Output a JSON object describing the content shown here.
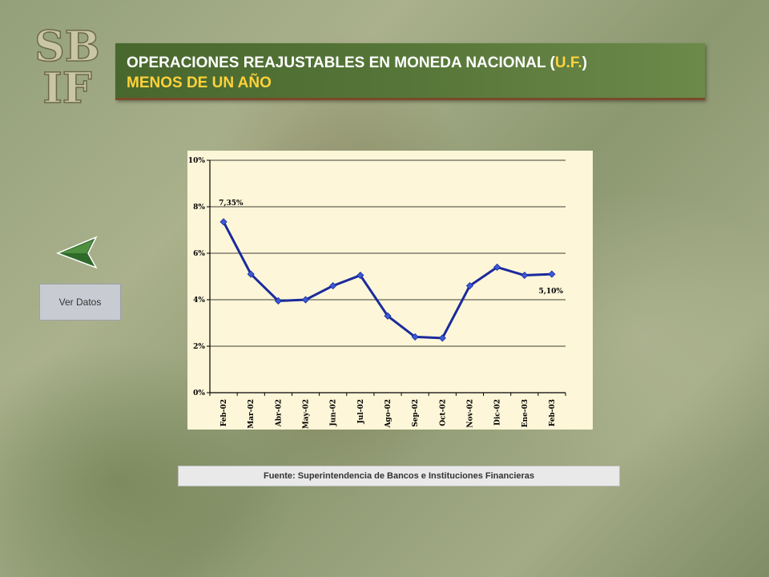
{
  "logo": {
    "line1": "SB",
    "line2": "IF"
  },
  "header": {
    "title_prefix": "OPERACIONES REAJUSTABLES EN MONEDA NACIONAL (",
    "title_highlight": "U.F.",
    "title_suffix": ")",
    "subtitle": "MENOS DE UN AÑO"
  },
  "nav": {
    "back_icon": "back-arrow-icon",
    "ver_datos_label": "Ver Datos"
  },
  "source": {
    "text": "Fuente:  Superintendencia  de Bancos  e Instituciones Financieras"
  },
  "colors": {
    "header_bg": "#58783a",
    "accent_yellow": "#ffd23a",
    "line": "#1a2a9c",
    "marker": "#3b5bd6",
    "chart_bg": "#fdf6d8"
  },
  "chart_data": {
    "type": "line",
    "categories": [
      "Feb-02",
      "Mar-02",
      "Abr-02",
      "May-02",
      "Jun-02",
      "Jul-02",
      "Ago-02",
      "Sep-02",
      "Oct-02",
      "Nov-02",
      "Dic-02",
      "Ene-03",
      "Feb-03"
    ],
    "values": [
      7.35,
      5.1,
      3.95,
      4.0,
      4.6,
      5.05,
      3.3,
      2.4,
      2.35,
      4.6,
      5.4,
      5.05,
      5.1
    ],
    "ylim": [
      0,
      10
    ],
    "yticks": [
      0,
      2,
      4,
      6,
      8,
      10
    ],
    "ytick_labels": [
      "0%",
      "2%",
      "4%",
      "6%",
      "8%",
      "10%"
    ],
    "grid": true,
    "annotations": [
      {
        "index": 0,
        "text": "7,35%"
      },
      {
        "index": 12,
        "text": "5,10%"
      }
    ],
    "title": "",
    "xlabel": "",
    "ylabel": ""
  }
}
